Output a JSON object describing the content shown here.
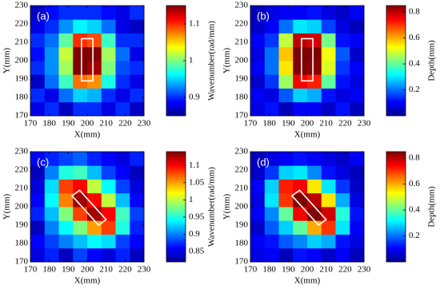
{
  "chart_data": [
    {
      "type": "heatmap",
      "label": "(a)",
      "xlabel": "X(mm)",
      "ylabel": "Y(mm)",
      "colorbar_label": "Wavenumber(rad/mm)",
      "colormap": "jet",
      "xlim": [
        170,
        230
      ],
      "xticks": [
        170,
        180,
        190,
        200,
        210,
        220,
        230
      ],
      "ylim": [
        170,
        230
      ],
      "yticks": [
        170,
        180,
        190,
        200,
        210,
        220,
        230
      ],
      "x_edges": [
        170,
        177.5,
        185,
        192.5,
        200,
        207.5,
        215,
        222.5,
        230
      ],
      "y_edges": [
        170,
        177.5,
        185,
        192.5,
        200,
        207.5,
        215,
        222.5,
        230
      ],
      "clim": [
        0.85,
        1.15
      ],
      "cticks": [
        0.9,
        1,
        1.1
      ],
      "z": [
        [
          0.88,
          0.9,
          0.87,
          0.9,
          0.9,
          0.88,
          0.9,
          0.87
        ],
        [
          0.9,
          0.88,
          0.92,
          0.95,
          0.94,
          0.9,
          0.88,
          0.9
        ],
        [
          0.87,
          0.92,
          0.98,
          1.08,
          1.07,
          0.97,
          0.9,
          0.88
        ],
        [
          0.9,
          0.93,
          1.01,
          1.15,
          1.14,
          1.0,
          0.91,
          0.9
        ],
        [
          0.89,
          0.93,
          1.02,
          1.15,
          1.15,
          1.01,
          0.92,
          0.88
        ],
        [
          0.9,
          0.92,
          0.99,
          1.1,
          1.09,
          0.98,
          0.9,
          0.9
        ],
        [
          0.88,
          0.9,
          0.93,
          0.96,
          0.95,
          0.92,
          0.88,
          0.87
        ],
        [
          0.87,
          0.89,
          0.9,
          0.9,
          0.9,
          0.89,
          0.88,
          0.9
        ]
      ],
      "outline": [
        [
          197,
          189
        ],
        [
          203,
          189
        ],
        [
          203,
          212
        ],
        [
          197,
          212
        ]
      ]
    },
    {
      "type": "heatmap",
      "label": "(b)",
      "xlabel": "X(mm)",
      "ylabel": "Y(mm)",
      "colorbar_label": "Depth(mm)",
      "colormap": "jet",
      "xlim": [
        170,
        230
      ],
      "xticks": [
        170,
        180,
        190,
        200,
        210,
        220,
        230
      ],
      "ylim": [
        170,
        230
      ],
      "yticks": [
        170,
        180,
        190,
        200,
        210,
        220,
        230
      ],
      "x_edges": [
        170,
        177.5,
        185,
        192.5,
        200,
        207.5,
        215,
        222.5,
        230
      ],
      "y_edges": [
        170,
        177.5,
        185,
        192.5,
        200,
        207.5,
        215,
        222.5,
        230
      ],
      "clim": [
        0,
        0.85
      ],
      "cticks": [
        0.2,
        0.4,
        0.6,
        0.8
      ],
      "z": [
        [
          0.08,
          0.12,
          0.05,
          0.1,
          0.1,
          0.06,
          0.12,
          0.05
        ],
        [
          0.1,
          0.08,
          0.18,
          0.28,
          0.25,
          0.12,
          0.08,
          0.1
        ],
        [
          0.06,
          0.15,
          0.45,
          0.75,
          0.72,
          0.4,
          0.12,
          0.08
        ],
        [
          0.1,
          0.2,
          0.55,
          0.85,
          0.84,
          0.5,
          0.15,
          0.1
        ],
        [
          0.08,
          0.2,
          0.58,
          0.85,
          0.85,
          0.52,
          0.18,
          0.06
        ],
        [
          0.1,
          0.15,
          0.48,
          0.8,
          0.78,
          0.42,
          0.12,
          0.1
        ],
        [
          0.06,
          0.1,
          0.2,
          0.3,
          0.28,
          0.16,
          0.08,
          0.05
        ],
        [
          0.05,
          0.08,
          0.1,
          0.1,
          0.12,
          0.08,
          0.06,
          0.1
        ]
      ],
      "outline": [
        [
          197,
          189
        ],
        [
          203,
          189
        ],
        [
          203,
          212
        ],
        [
          197,
          212
        ]
      ]
    },
    {
      "type": "heatmap",
      "label": "(c)",
      "xlabel": "X(mm)",
      "ylabel": "Y(mm)",
      "colorbar_label": "Wavenumber(rad/mm)",
      "colormap": "jet",
      "xlim": [
        170,
        230
      ],
      "xticks": [
        170,
        180,
        190,
        200,
        210,
        220,
        230
      ],
      "ylim": [
        170,
        230
      ],
      "yticks": [
        170,
        180,
        190,
        200,
        210,
        220,
        230
      ],
      "x_edges": [
        170,
        177.5,
        185,
        192.5,
        200,
        207.5,
        215,
        222.5,
        230
      ],
      "y_edges": [
        170,
        177.5,
        185,
        192.5,
        200,
        207.5,
        215,
        222.5,
        230
      ],
      "clim": [
        0.82,
        1.14
      ],
      "cticks": [
        0.85,
        0.9,
        0.95,
        1,
        1.05,
        1.1
      ],
      "z": [
        [
          0.85,
          0.87,
          0.84,
          0.88,
          0.86,
          0.85,
          0.87,
          0.84
        ],
        [
          0.86,
          0.88,
          0.9,
          0.92,
          0.94,
          0.93,
          0.88,
          0.86
        ],
        [
          0.84,
          0.9,
          0.94,
          0.98,
          1.05,
          1.08,
          0.95,
          0.87
        ],
        [
          0.87,
          0.92,
          0.98,
          1.08,
          1.13,
          1.1,
          0.96,
          0.88
        ],
        [
          0.86,
          0.94,
          1.06,
          1.13,
          1.1,
          1.0,
          0.92,
          0.86
        ],
        [
          0.85,
          0.93,
          1.08,
          1.1,
          1.0,
          0.94,
          0.88,
          0.85
        ],
        [
          0.84,
          0.9,
          0.95,
          0.96,
          0.92,
          0.88,
          0.86,
          0.84
        ],
        [
          0.86,
          0.87,
          0.88,
          0.89,
          0.87,
          0.86,
          0.85,
          0.87
        ]
      ],
      "outline": [
        [
          192,
          206
        ],
        [
          196,
          209
        ],
        [
          210,
          193
        ],
        [
          206,
          190
        ]
      ]
    },
    {
      "type": "heatmap",
      "label": "(d)",
      "xlabel": "X(mm)",
      "ylabel": "Y(mm)",
      "colorbar_label": "Depth(mm)",
      "colormap": "jet",
      "xlim": [
        170,
        230
      ],
      "xticks": [
        170,
        180,
        190,
        200,
        210,
        220,
        230
      ],
      "ylim": [
        170,
        230
      ],
      "yticks": [
        170,
        180,
        190,
        200,
        210,
        220,
        230
      ],
      "x_edges": [
        170,
        177.5,
        185,
        192.5,
        200,
        207.5,
        215,
        222.5,
        230
      ],
      "y_edges": [
        170,
        177.5,
        185,
        192.5,
        200,
        207.5,
        215,
        222.5,
        230
      ],
      "clim": [
        0,
        0.85
      ],
      "cticks": [
        0.2,
        0.4,
        0.6,
        0.8
      ],
      "z": [
        [
          0.08,
          0.1,
          0.05,
          0.12,
          0.1,
          0.06,
          0.1,
          0.05
        ],
        [
          0.1,
          0.12,
          0.18,
          0.22,
          0.28,
          0.25,
          0.12,
          0.08
        ],
        [
          0.06,
          0.18,
          0.28,
          0.4,
          0.6,
          0.7,
          0.3,
          0.1
        ],
        [
          0.1,
          0.22,
          0.4,
          0.75,
          0.85,
          0.78,
          0.35,
          0.12
        ],
        [
          0.08,
          0.3,
          0.7,
          0.85,
          0.8,
          0.55,
          0.25,
          0.08
        ],
        [
          0.1,
          0.28,
          0.72,
          0.75,
          0.55,
          0.3,
          0.15,
          0.06
        ],
        [
          0.06,
          0.15,
          0.28,
          0.3,
          0.22,
          0.12,
          0.08,
          0.05
        ],
        [
          0.05,
          0.08,
          0.1,
          0.12,
          0.1,
          0.08,
          0.06,
          0.1
        ]
      ],
      "outline": [
        [
          192,
          206
        ],
        [
          196,
          209
        ],
        [
          210,
          193
        ],
        [
          206,
          190
        ]
      ]
    }
  ]
}
